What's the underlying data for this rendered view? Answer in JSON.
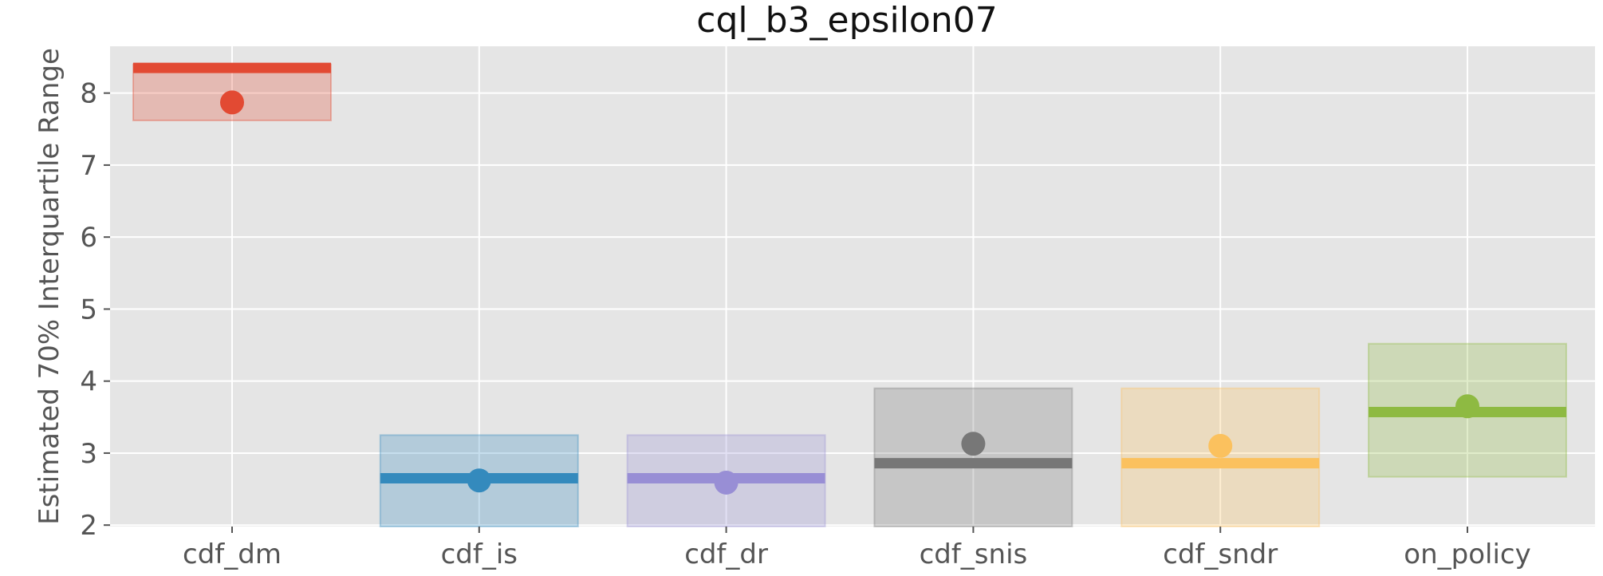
{
  "chart_data": {
    "type": "box",
    "title": "cql_b3_epsilon07",
    "xlabel": "",
    "ylabel": "Estimated 70% Interquartile Range",
    "ylim": [
      1.98,
      8.65
    ],
    "yticks": [
      2,
      3,
      4,
      5,
      6,
      7,
      8
    ],
    "grid": true,
    "background": "#e5e5e5",
    "grid_color": "#ffffff",
    "categories": [
      "cdf_dm",
      "cdf_is",
      "cdf_dr",
      "cdf_snis",
      "cdf_sndr",
      "on_policy"
    ],
    "series": [
      {
        "category": "cdf_dm",
        "box_low": 7.62,
        "box_high": 8.4,
        "line": 8.35,
        "point": 7.87,
        "color": "#E24A33"
      },
      {
        "category": "cdf_is",
        "box_low": 1.98,
        "box_high": 3.25,
        "line": 2.65,
        "point": 2.62,
        "color": "#348ABD"
      },
      {
        "category": "cdf_dr",
        "box_low": 1.98,
        "box_high": 3.25,
        "line": 2.65,
        "point": 2.59,
        "color": "#988ED5"
      },
      {
        "category": "cdf_snis",
        "box_low": 1.98,
        "box_high": 3.9,
        "line": 2.86,
        "point": 3.13,
        "color": "#777777"
      },
      {
        "category": "cdf_sndr",
        "box_low": 1.98,
        "box_high": 3.9,
        "line": 2.86,
        "point": 3.1,
        "color": "#FBC15E"
      },
      {
        "category": "on_policy",
        "box_low": 2.67,
        "box_high": 4.52,
        "line": 3.57,
        "point": 3.65,
        "color": "#8EBA42"
      }
    ]
  }
}
